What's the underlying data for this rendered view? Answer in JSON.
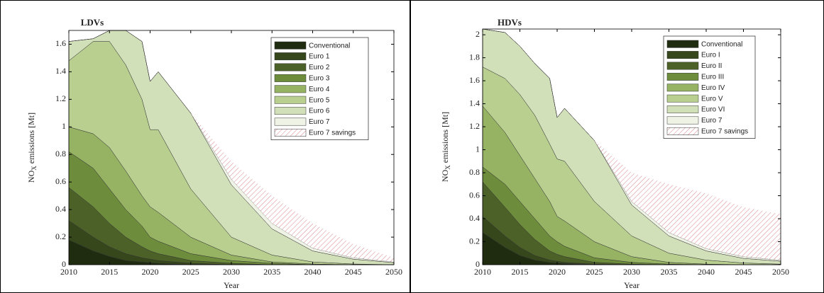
{
  "chart_data": [
    {
      "type": "area",
      "title": "LDVs",
      "xlabel": "Year",
      "ylabel": [
        "NO",
        "X",
        "emissions [Mt]"
      ],
      "x": [
        2010,
        2013,
        2015,
        2017,
        2019,
        2020,
        2021,
        2025,
        2030,
        2035,
        2040,
        2045,
        2050
      ],
      "xlim": [
        2010,
        2050
      ],
      "xticks": [
        2010,
        2015,
        2020,
        2025,
        2030,
        2035,
        2040,
        2045,
        2050
      ],
      "ylim": [
        0,
        1.7
      ],
      "yticks": [
        0,
        0.2,
        0.4,
        0.6,
        0.8,
        1,
        1.2,
        1.4,
        1.6
      ],
      "legend": "upper right",
      "series": [
        {
          "name": "Conventional",
          "color": "#1f2c10",
          "values": [
            0.18,
            0.1,
            0.06,
            0.03,
            0.02,
            0.015,
            0.01,
            0,
            0,
            0,
            0,
            0,
            0
          ]
        },
        {
          "name": "Euro 1",
          "color": "#36471b",
          "values": [
            0.14,
            0.1,
            0.07,
            0.05,
            0.03,
            0.025,
            0.02,
            0.01,
            0,
            0,
            0,
            0,
            0
          ]
        },
        {
          "name": "Euro 2",
          "color": "#4c6128",
          "values": [
            0.24,
            0.22,
            0.17,
            0.12,
            0.08,
            0.06,
            0.05,
            0.02,
            0.01,
            0,
            0,
            0,
            0
          ]
        },
        {
          "name": "Euro 3",
          "color": "#6d8c3c",
          "values": [
            0.26,
            0.28,
            0.25,
            0.2,
            0.15,
            0.1,
            0.09,
            0.05,
            0.02,
            0.01,
            0,
            0,
            0
          ]
        },
        {
          "name": "Euro 4",
          "color": "#96b364",
          "values": [
            0.18,
            0.25,
            0.3,
            0.28,
            0.22,
            0.22,
            0.21,
            0.12,
            0.04,
            0.01,
            0.005,
            0,
            0
          ]
        },
        {
          "name": "Euro 5",
          "color": "#b8cf8f",
          "values": [
            0.48,
            0.67,
            0.77,
            0.77,
            0.7,
            0.56,
            0.6,
            0.35,
            0.13,
            0.05,
            0.015,
            0.005,
            0
          ]
        },
        {
          "name": "Euro 6",
          "color": "#d2e0b9",
          "values": [
            0.14,
            0.02,
            0.08,
            0.25,
            0.42,
            0.35,
            0.42,
            0.55,
            0.38,
            0.19,
            0.08,
            0.035,
            0.015
          ]
        },
        {
          "name": "Euro 7",
          "color": "#eef3e5",
          "values": [
            0,
            0,
            0,
            0,
            0,
            0,
            0,
            0,
            0.04,
            0.04,
            0.02,
            0.01,
            0.005
          ]
        },
        {
          "name": "Euro 7 savings",
          "color": "#d9848c",
          "hatch": true,
          "values": [
            0,
            0,
            0,
            0,
            0,
            0,
            0,
            0,
            0.13,
            0.2,
            0.18,
            0.1,
            0.03
          ]
        }
      ]
    },
    {
      "type": "area",
      "title": "HDVs",
      "xlabel": "Year",
      "ylabel": [
        "NO",
        "X",
        "emissions [Mt]"
      ],
      "x": [
        2010,
        2013,
        2015,
        2017,
        2019,
        2020,
        2021,
        2025,
        2030,
        2035,
        2040,
        2045,
        2050
      ],
      "xlim": [
        2010,
        2050
      ],
      "xticks": [
        2010,
        2015,
        2020,
        2025,
        2030,
        2035,
        2040,
        2045,
        2050
      ],
      "ylim": [
        0,
        2.05
      ],
      "yticks": [
        0,
        0.2,
        0.4,
        0.6,
        0.8,
        1,
        1.2,
        1.4,
        1.6,
        1.8,
        2
      ],
      "legend": "upper right",
      "series": [
        {
          "name": "Conventional",
          "color": "#1f2c10",
          "values": [
            0.28,
            0.15,
            0.08,
            0.04,
            0.02,
            0.015,
            0.01,
            0,
            0,
            0,
            0,
            0,
            0
          ]
        },
        {
          "name": "Euro I",
          "color": "#36471b",
          "values": [
            0.14,
            0.1,
            0.07,
            0.04,
            0.02,
            0.015,
            0.01,
            0.005,
            0,
            0,
            0,
            0,
            0
          ]
        },
        {
          "name": "Euro II",
          "color": "#4c6128",
          "values": [
            0.3,
            0.25,
            0.2,
            0.14,
            0.08,
            0.06,
            0.05,
            0.015,
            0.005,
            0,
            0,
            0,
            0
          ]
        },
        {
          "name": "Euro III",
          "color": "#6d8c3c",
          "values": [
            0.13,
            0.2,
            0.2,
            0.18,
            0.13,
            0.11,
            0.09,
            0.04,
            0.015,
            0.005,
            0,
            0,
            0
          ]
        },
        {
          "name": "Euro IV",
          "color": "#96b364",
          "values": [
            0.53,
            0.45,
            0.4,
            0.35,
            0.3,
            0.22,
            0.22,
            0.14,
            0.05,
            0.015,
            0.005,
            0,
            0
          ]
        },
        {
          "name": "Euro V",
          "color": "#b8cf8f",
          "values": [
            0.34,
            0.47,
            0.53,
            0.55,
            0.5,
            0.5,
            0.52,
            0.35,
            0.18,
            0.08,
            0.035,
            0.015,
            0.005
          ]
        },
        {
          "name": "Euro VI",
          "color": "#d2e0b9",
          "values": [
            0.33,
            0.4,
            0.42,
            0.45,
            0.57,
            0.36,
            0.46,
            0.53,
            0.27,
            0.15,
            0.08,
            0.04,
            0.025
          ]
        },
        {
          "name": "Euro 7",
          "color": "#eef3e5",
          "values": [
            0,
            0,
            0,
            0,
            0,
            0,
            0,
            0,
            0.03,
            0.03,
            0.02,
            0.015,
            0.01
          ]
        },
        {
          "name": "Euro 7 savings",
          "color": "#d9848c",
          "hatch": true,
          "values": [
            0,
            0,
            0,
            0,
            0,
            0,
            0,
            0,
            0.25,
            0.42,
            0.48,
            0.43,
            0.4
          ]
        }
      ]
    }
  ]
}
